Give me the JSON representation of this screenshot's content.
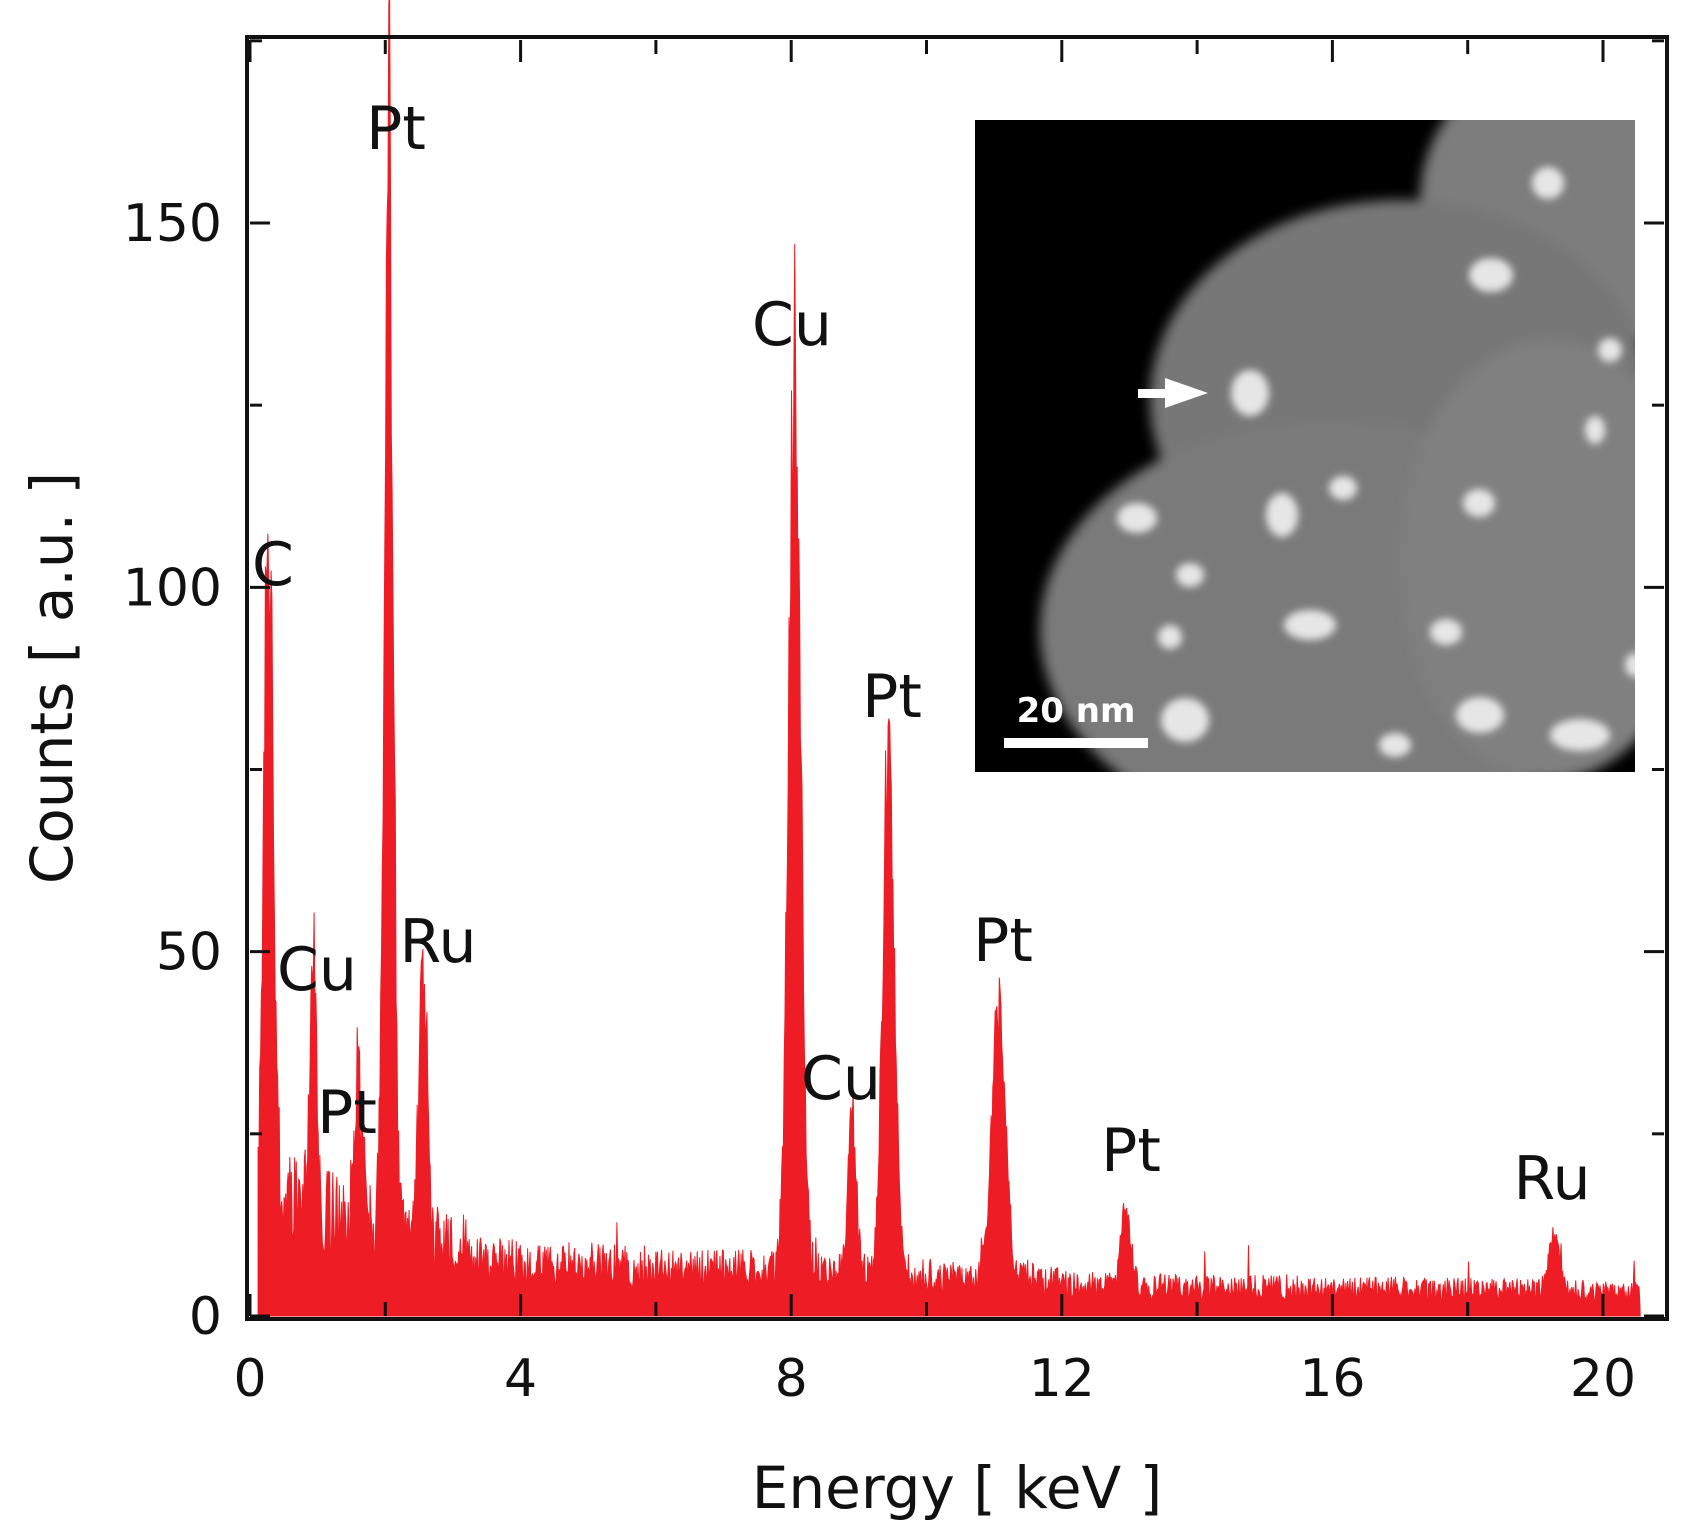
{
  "chart_data": {
    "type": "area",
    "title": "",
    "xlabel": "Energy [ keV ]",
    "ylabel": "Counts [ a.u. ]",
    "xlim": [
      0,
      21
    ],
    "ylim": [
      0,
      175
    ],
    "xticks": [
      0,
      4,
      8,
      12,
      16,
      20
    ],
    "yticks": [
      0,
      50,
      100,
      150
    ],
    "xtick_labels": [
      "0",
      "4",
      "8",
      "12",
      "16",
      "20"
    ],
    "ytick_labels": [
      "0",
      "50",
      "100",
      "150"
    ],
    "grid": false,
    "legend": "none",
    "color": "#ee1c25",
    "background_level": 5,
    "peaks": [
      {
        "label": "C",
        "x": 0.27,
        "y": 97
      },
      {
        "label": "Cu",
        "x": 0.93,
        "y": 43
      },
      {
        "label": "Pt",
        "x": 1.6,
        "y": 25
      },
      {
        "label": "Pt",
        "x": 2.05,
        "y": 157
      },
      {
        "label": "Ru",
        "x": 2.56,
        "y": 44
      },
      {
        "label": "Cu",
        "x": 8.05,
        "y": 128
      },
      {
        "label": "Cu",
        "x": 8.9,
        "y": 28
      },
      {
        "label": "Pt",
        "x": 9.44,
        "y": 78
      },
      {
        "label": "Pt",
        "x": 11.07,
        "y": 44
      },
      {
        "label": "Pt",
        "x": 12.94,
        "y": 17
      },
      {
        "label": "Ru",
        "x": 19.28,
        "y": 13
      }
    ],
    "inset": {
      "type": "image",
      "description": "",
      "scale_bar_label": "20 nm"
    }
  }
}
